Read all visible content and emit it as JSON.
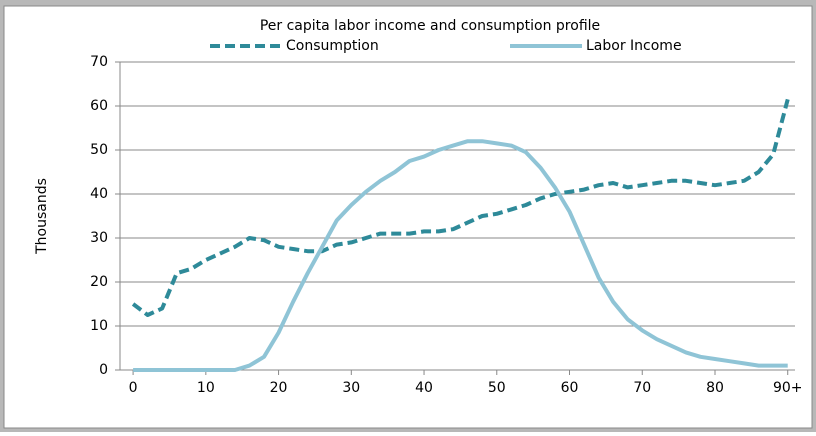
{
  "chart_data": {
    "type": "line",
    "title": "Per capita labor income and consumption profile",
    "y_label": "Thousands",
    "x": [
      0,
      2,
      4,
      6,
      8,
      10,
      12,
      14,
      16,
      18,
      20,
      22,
      24,
      26,
      28,
      30,
      32,
      34,
      36,
      38,
      40,
      42,
      44,
      46,
      48,
      50,
      52,
      54,
      56,
      58,
      60,
      62,
      64,
      66,
      68,
      70,
      72,
      74,
      76,
      78,
      80,
      82,
      84,
      86,
      88,
      90
    ],
    "series": [
      {
        "name": "Consumption",
        "color": "#2e8a99",
        "dashed": true,
        "values": [
          15,
          12.5,
          14,
          22,
          23,
          25,
          26.5,
          28,
          30,
          29.5,
          28,
          27.5,
          27,
          27,
          28.5,
          29,
          30,
          31,
          31,
          31,
          31.5,
          31.5,
          32,
          33.5,
          35,
          35.5,
          36.5,
          37.5,
          39,
          40,
          40.5,
          41,
          42,
          42.5,
          41.5,
          42,
          42.5,
          43,
          43,
          42.5,
          42,
          42.5,
          43,
          45,
          49,
          61.5
        ]
      },
      {
        "name": "Labor Income",
        "color": "#8fc4d6",
        "dashed": false,
        "values": [
          0,
          0,
          0,
          0,
          0,
          0,
          0,
          0,
          1,
          3,
          8.5,
          15.5,
          22,
          28,
          34,
          37.5,
          40.5,
          43,
          45,
          47.5,
          48.5,
          50,
          51,
          52,
          52,
          51.5,
          51,
          49.5,
          46,
          41.5,
          36,
          28.5,
          21,
          15.5,
          11.5,
          9,
          7,
          5.5,
          4,
          3,
          2.5,
          2,
          1.5,
          1,
          1,
          1
        ]
      }
    ],
    "xlim": [
      -1.8,
      91
    ],
    "xticks": [
      0,
      10,
      20,
      30,
      40,
      50,
      60,
      70,
      80,
      {
        "value": 90,
        "label": "90+"
      }
    ],
    "ylim": [
      0,
      70
    ],
    "yticks": [
      0,
      10,
      20,
      30,
      40,
      50,
      60,
      70
    ],
    "grid": true,
    "legend": "top"
  }
}
